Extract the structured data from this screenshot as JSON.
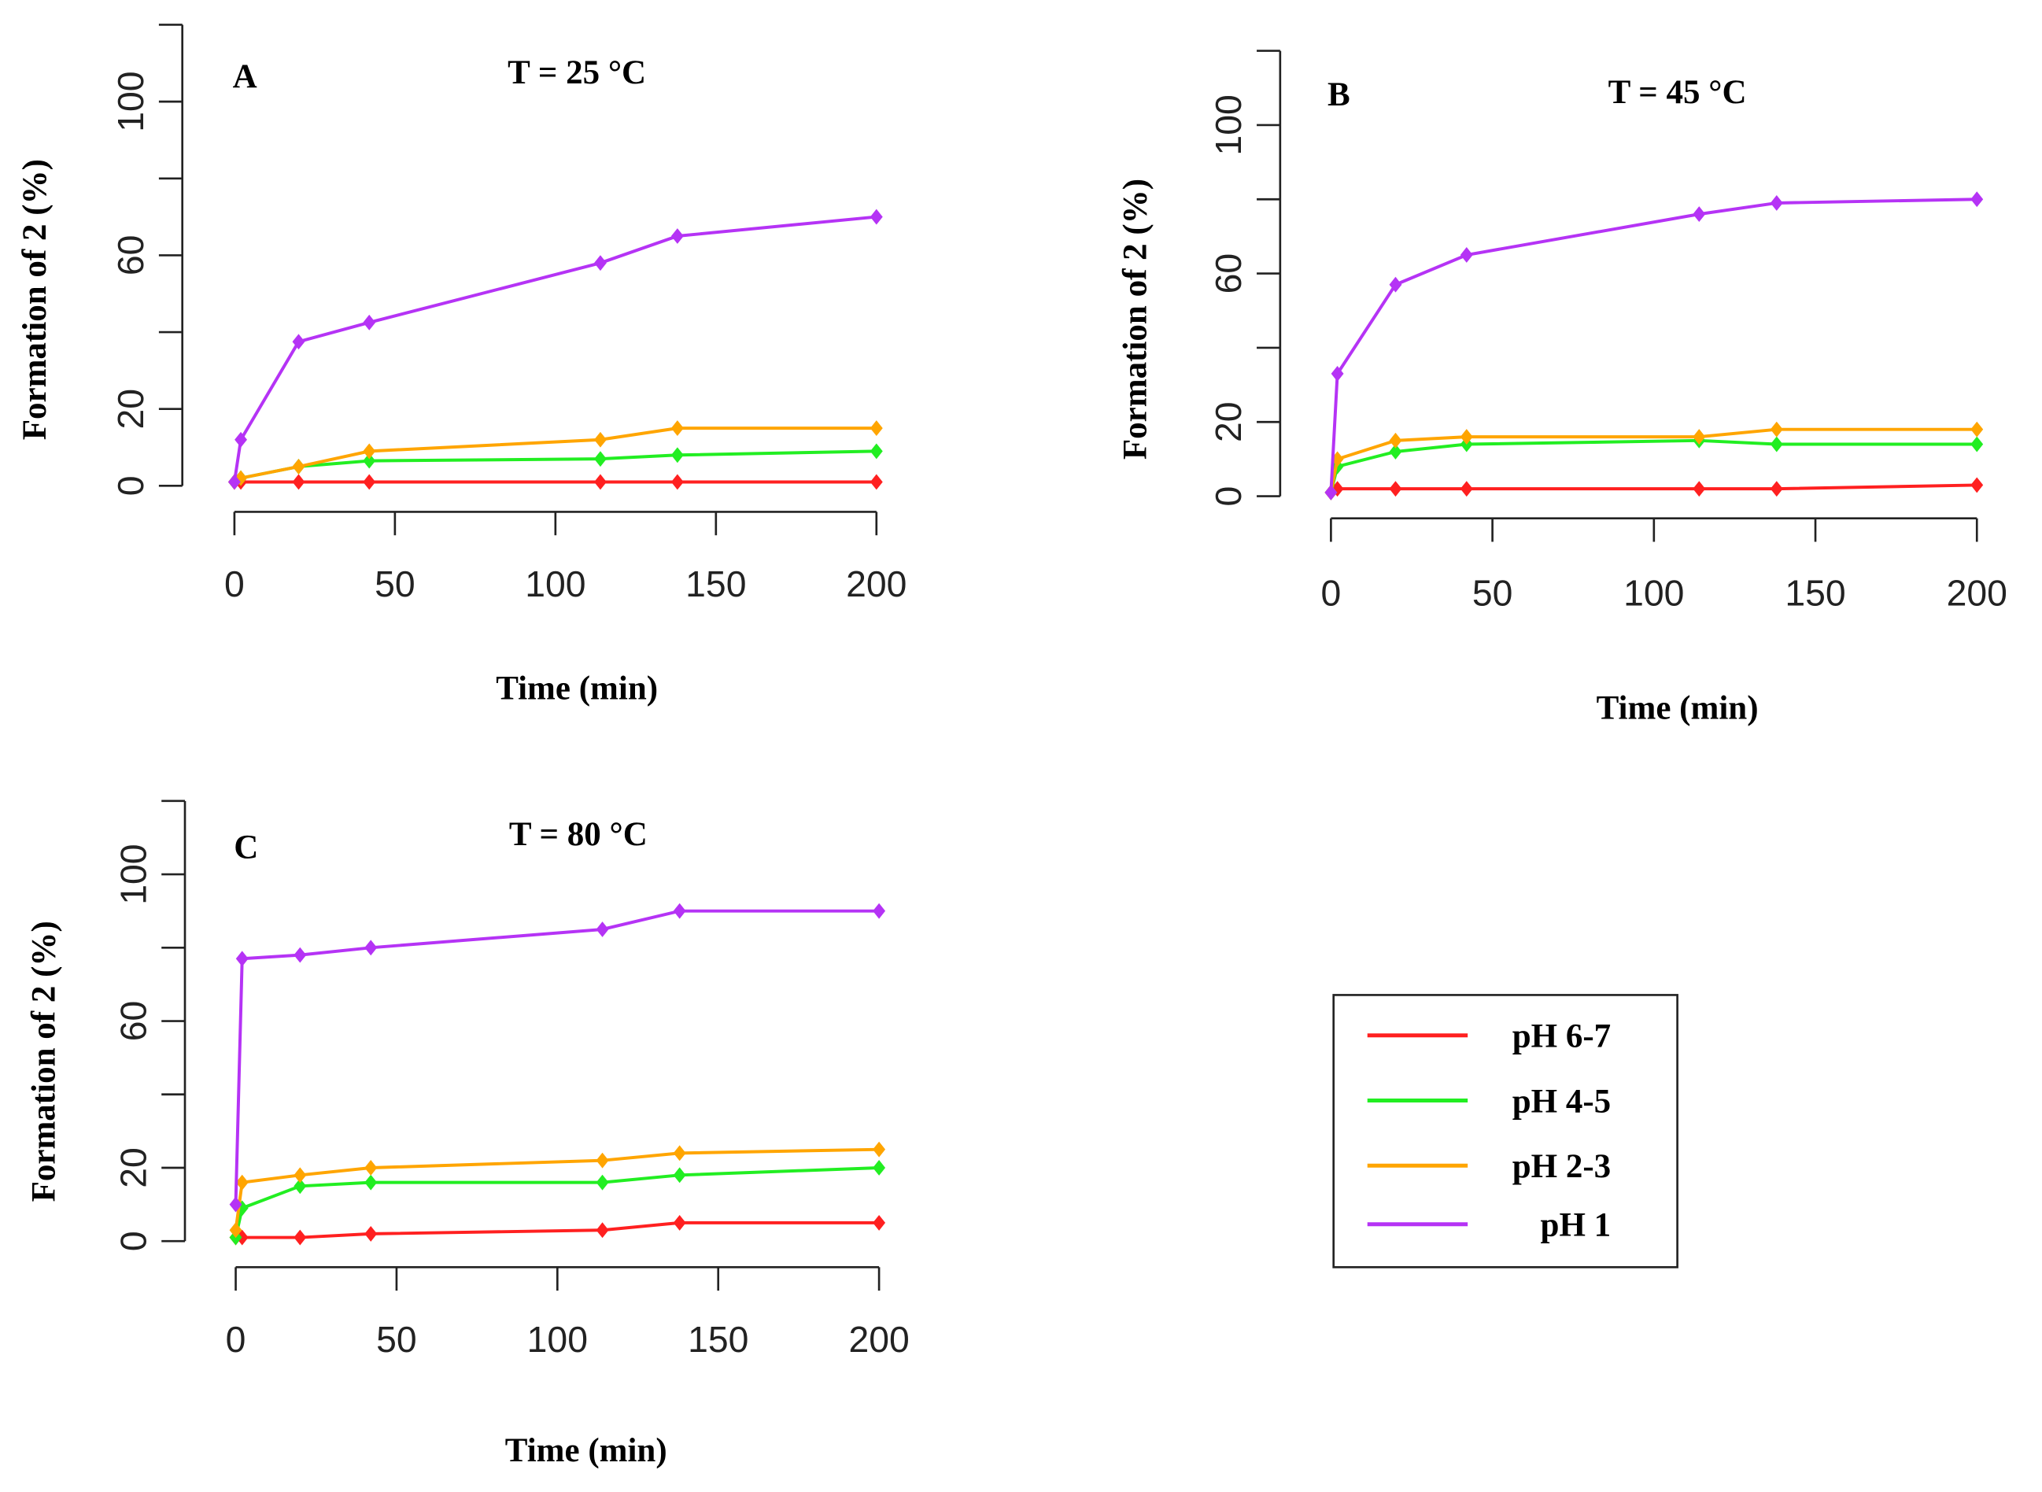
{
  "chart_data": [
    {
      "type": "line",
      "panel": "A",
      "title": "T = 25 °C",
      "x_label": "Time (min)",
      "y_label": "Formation of 2 (%)",
      "x": [
        0,
        2,
        20,
        42,
        114,
        138,
        200
      ],
      "xlim": [
        0,
        200
      ],
      "xticks": [
        0,
        50,
        100,
        150,
        200
      ],
      "ylim": [
        0,
        120
      ],
      "yticks": [
        0,
        20,
        60,
        100
      ],
      "yticks_unlabeled": [
        40,
        80,
        120
      ],
      "series": [
        {
          "name": "pH 6-7",
          "color": "#ff2020",
          "values": [
            1,
            1,
            1,
            1,
            1,
            1,
            1
          ]
        },
        {
          "name": "pH 4-5",
          "color": "#22ee22",
          "values": [
            1,
            2,
            5,
            6.5,
            7,
            8,
            9
          ]
        },
        {
          "name": "pH 2-3",
          "color": "#ffa500",
          "values": [
            1,
            2,
            5,
            9,
            12,
            15,
            15
          ]
        },
        {
          "name": "pH 1",
          "color": "#b533f5",
          "values": [
            1,
            12,
            37.5,
            42.5,
            58,
            65,
            70
          ]
        }
      ]
    },
    {
      "type": "line",
      "panel": "B",
      "title": "T = 45 °C",
      "x_label": "Time (min)",
      "y_label": "Formation of 2 (%)",
      "x": [
        0,
        2,
        20,
        42,
        114,
        138,
        200
      ],
      "xlim": [
        0,
        200
      ],
      "xticks": [
        0,
        50,
        100,
        150,
        200
      ],
      "ylim": [
        0,
        120
      ],
      "yticks": [
        0,
        20,
        60,
        100
      ],
      "yticks_unlabeled": [
        40,
        80,
        120
      ],
      "series": [
        {
          "name": "pH 6-7",
          "color": "#ff2020",
          "values": [
            1,
            2,
            2,
            2,
            2,
            2,
            3
          ]
        },
        {
          "name": "pH 4-5",
          "color": "#22ee22",
          "values": [
            1,
            8,
            12,
            14,
            15,
            14,
            14
          ]
        },
        {
          "name": "pH 2-3",
          "color": "#ffa500",
          "values": [
            1,
            10,
            15,
            16,
            16,
            18,
            18
          ]
        },
        {
          "name": "pH 1",
          "color": "#b533f5",
          "values": [
            1,
            33,
            57,
            65,
            76,
            79,
            80
          ]
        }
      ]
    },
    {
      "type": "line",
      "panel": "C",
      "title": "T = 80 °C",
      "x_label": "Time (min)",
      "y_label": "Formation of 2 (%)",
      "x": [
        0,
        2,
        20,
        42,
        114,
        138,
        200
      ],
      "xlim": [
        0,
        200
      ],
      "xticks": [
        0,
        50,
        100,
        150,
        200
      ],
      "ylim": [
        0,
        120
      ],
      "yticks": [
        0,
        20,
        60,
        100
      ],
      "yticks_unlabeled": [
        40,
        80,
        120
      ],
      "series": [
        {
          "name": "pH 6-7",
          "color": "#ff2020",
          "values": [
            1,
            1,
            1,
            2,
            3,
            5,
            5
          ]
        },
        {
          "name": "pH 4-5",
          "color": "#22ee22",
          "values": [
            1,
            9,
            15,
            16,
            16,
            18,
            20
          ]
        },
        {
          "name": "pH 2-3",
          "color": "#ffa500",
          "values": [
            3,
            16,
            18,
            20,
            22,
            24,
            25
          ]
        },
        {
          "name": "pH 1",
          "color": "#b533f5",
          "values": [
            10,
            77,
            78,
            80,
            85,
            90,
            90
          ]
        }
      ]
    }
  ]
}
